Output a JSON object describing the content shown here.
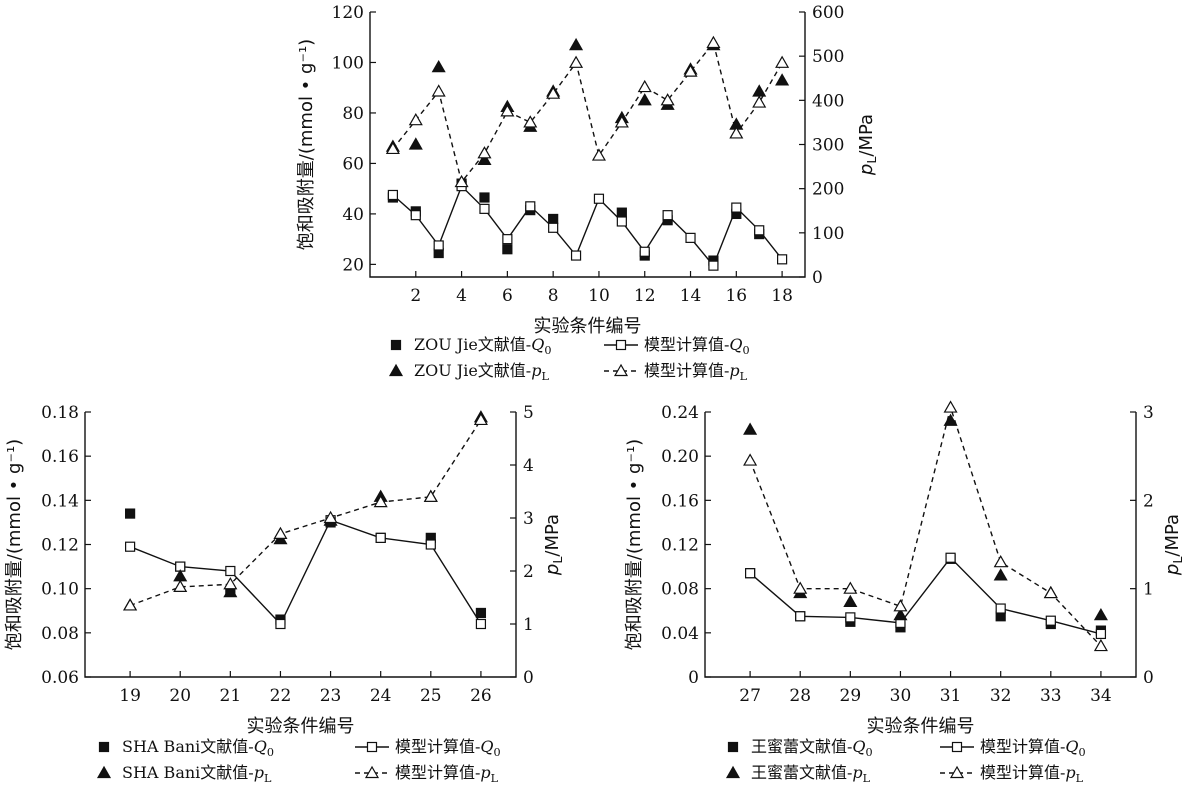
{
  "chart_data": [
    {
      "type": "line",
      "x": [
        1,
        2,
        3,
        4,
        5,
        6,
        7,
        8,
        9,
        10,
        11,
        12,
        13,
        14,
        15,
        16,
        17,
        18
      ],
      "xticks": [
        2,
        4,
        6,
        8,
        10,
        12,
        14,
        16,
        18
      ],
      "xlim": [
        0,
        19
      ],
      "xlabel": "实验条件编号",
      "ylabel_left": "饱和吸附量/(mmol • g⁻¹)",
      "ylabel_right": "pL/MPa",
      "ylim_left": [
        15,
        120
      ],
      "yticks_left": [
        20,
        40,
        60,
        80,
        100,
        120
      ],
      "ytick_labels_left": [
        "20",
        "40",
        "60",
        "80",
        "100",
        "120"
      ],
      "ylim_right": [
        0,
        600
      ],
      "yticks_right": [
        0,
        100,
        200,
        300,
        400,
        500,
        600
      ],
      "ytick_labels_right": [
        "0",
        "100",
        "200",
        "300",
        "400",
        "500",
        "600"
      ],
      "series": [
        {
          "name": "ZOU Jie文献值-Q0",
          "axis": "left",
          "marker": "square-filled",
          "line": "none",
          "values": [
            46.5,
            41,
            24.5,
            52,
            46.5,
            26,
            41.5,
            38,
            null,
            null,
            40.5,
            23.5,
            37.5,
            null,
            21.5,
            40,
            32,
            null
          ]
        },
        {
          "name": "模型计算值-Q0",
          "axis": "left",
          "marker": "square-open",
          "line": "solid",
          "values": [
            47.5,
            39.5,
            27.5,
            51,
            42,
            30,
            43,
            34.5,
            23.5,
            46,
            37,
            25,
            39.5,
            30.5,
            19.5,
            42.5,
            33.5,
            22
          ]
        },
        {
          "name": "ZOU Jie文献值-pL",
          "axis": "right",
          "marker": "triangle-filled",
          "line": "none",
          "values": [
            295,
            300,
            475,
            null,
            265,
            385,
            340,
            420,
            525,
            null,
            360,
            400,
            390,
            470,
            525,
            345,
            420,
            445
          ]
        },
        {
          "name": "模型计算值-pL",
          "axis": "right",
          "marker": "triangle-open",
          "line": "dashed",
          "values": [
            290,
            355,
            420,
            215,
            280,
            375,
            350,
            415,
            485,
            275,
            350,
            430,
            400,
            465,
            530,
            325,
            395,
            485
          ]
        }
      ],
      "legend": {
        "rows": [
          [
            {
              "pre": "ZOU Jie文献值-",
              "sym": "Q",
              "sub": "0"
            },
            {
              "pre": "模型计算值-",
              "sym": "Q",
              "sub": "0"
            }
          ],
          [
            {
              "pre": "ZOU Jie文献值-",
              "sym": "p",
              "sub": "L"
            },
            {
              "pre": "模型计算值-",
              "sym": "p",
              "sub": "L"
            }
          ]
        ]
      }
    },
    {
      "type": "line",
      "x": [
        19,
        20,
        21,
        22,
        23,
        24,
        25,
        26
      ],
      "xticks": [
        19,
        20,
        21,
        22,
        23,
        24,
        25,
        26
      ],
      "xlim": [
        18.1,
        26.7
      ],
      "xlabel": "实验条件编号",
      "ylabel_left": "饱和吸附量/(mmol • g⁻¹)",
      "ylabel_right": "pL/MPa",
      "ylim_left": [
        0.06,
        0.18
      ],
      "yticks_left": [
        0.06,
        0.08,
        0.1,
        0.12,
        0.14,
        0.16,
        0.18
      ],
      "ytick_labels_left": [
        "0.06",
        "0.08",
        "0.10",
        "0.12",
        "0.14",
        "0.16",
        "0.18"
      ],
      "ylim_right": [
        0,
        5
      ],
      "yticks_right": [
        0,
        1,
        2,
        3,
        4,
        5
      ],
      "ytick_labels_right": [
        "0",
        "1",
        "2",
        "3",
        "4",
        "5"
      ],
      "series": [
        {
          "name": "SHA Bani文献值-Q0",
          "axis": "left",
          "marker": "square-filled",
          "line": "none",
          "values": [
            0.134,
            0.11,
            0.099,
            0.086,
            0.13,
            0.123,
            0.123,
            0.089
          ]
        },
        {
          "name": "模型计算值-Q0",
          "axis": "left",
          "marker": "square-open",
          "line": "solid",
          "values": [
            0.119,
            0.11,
            0.108,
            0.084,
            0.131,
            0.123,
            0.12,
            0.084
          ]
        },
        {
          "name": "SHA Bani文献值-pL",
          "axis": "right",
          "marker": "triangle-filled",
          "line": "none",
          "values": [
            1.35,
            1.9,
            1.6,
            2.6,
            2.95,
            3.4,
            3.4,
            4.9
          ]
        },
        {
          "name": "模型计算值-pL",
          "axis": "right",
          "marker": "triangle-open",
          "line": "dashed",
          "values": [
            1.35,
            1.7,
            1.75,
            2.7,
            3.0,
            3.3,
            3.4,
            4.85
          ]
        }
      ],
      "legend": {
        "rows": [
          [
            {
              "pre": "SHA Bani文献值-",
              "sym": "Q",
              "sub": "0"
            },
            {
              "pre": "模型计算值-",
              "sym": "Q",
              "sub": "0"
            }
          ],
          [
            {
              "pre": "SHA Bani文献值-",
              "sym": "p",
              "sub": "L"
            },
            {
              "pre": "模型计算值-",
              "sym": "p",
              "sub": "L"
            }
          ]
        ]
      }
    },
    {
      "type": "line",
      "x": [
        27,
        28,
        29,
        30,
        31,
        32,
        33,
        34
      ],
      "xticks": [
        27,
        28,
        29,
        30,
        31,
        32,
        33,
        34
      ],
      "xlim": [
        26.1,
        34.7
      ],
      "xlabel": "实验条件编号",
      "ylabel_left": "饱和吸附量/(mmol • g⁻¹)",
      "ylabel_right": "pL/MPa",
      "ylim_left": [
        0,
        0.24
      ],
      "yticks_left": [
        0,
        0.04,
        0.08,
        0.12,
        0.16,
        0.2,
        0.24
      ],
      "ytick_labels_left": [
        "0",
        "0.04",
        "0.08",
        "0.12",
        "0.16",
        "0.20",
        "0.24"
      ],
      "ylim_right": [
        0,
        3
      ],
      "yticks_right": [
        0,
        1,
        2,
        3
      ],
      "ytick_labels_right": [
        "0",
        "1",
        "2",
        "3"
      ],
      "series": [
        {
          "name": "王蜜蕾文献值-Q0",
          "axis": "left",
          "marker": "square-filled",
          "line": "none",
          "values": [
            0.094,
            0.055,
            0.05,
            0.045,
            0.107,
            0.055,
            0.048,
            0.042
          ]
        },
        {
          "name": "模型计算值-Q0",
          "axis": "left",
          "marker": "square-open",
          "line": "solid",
          "values": [
            0.094,
            0.055,
            0.054,
            0.049,
            0.108,
            0.062,
            0.051,
            0.039
          ]
        },
        {
          "name": "王蜜蕾文献值-pL",
          "axis": "right",
          "marker": "triangle-filled",
          "line": "none",
          "values": [
            2.8,
            0.95,
            0.85,
            0.7,
            2.9,
            1.15,
            0.95,
            0.7
          ]
        },
        {
          "name": "模型计算值-pL",
          "axis": "right",
          "marker": "triangle-open",
          "line": "dashed",
          "values": [
            2.45,
            1.0,
            1.0,
            0.8,
            3.05,
            1.3,
            0.95,
            0.35
          ]
        }
      ],
      "legend": {
        "rows": [
          [
            {
              "pre": "王蜜蕾文献值-",
              "sym": "Q",
              "sub": "0"
            },
            {
              "pre": "模型计算值-",
              "sym": "Q",
              "sub": "0"
            }
          ],
          [
            {
              "pre": "王蜜蕾文献值-",
              "sym": "p",
              "sub": "L"
            },
            {
              "pre": "模型计算值-",
              "sym": "p",
              "sub": "L"
            }
          ]
        ]
      }
    }
  ]
}
